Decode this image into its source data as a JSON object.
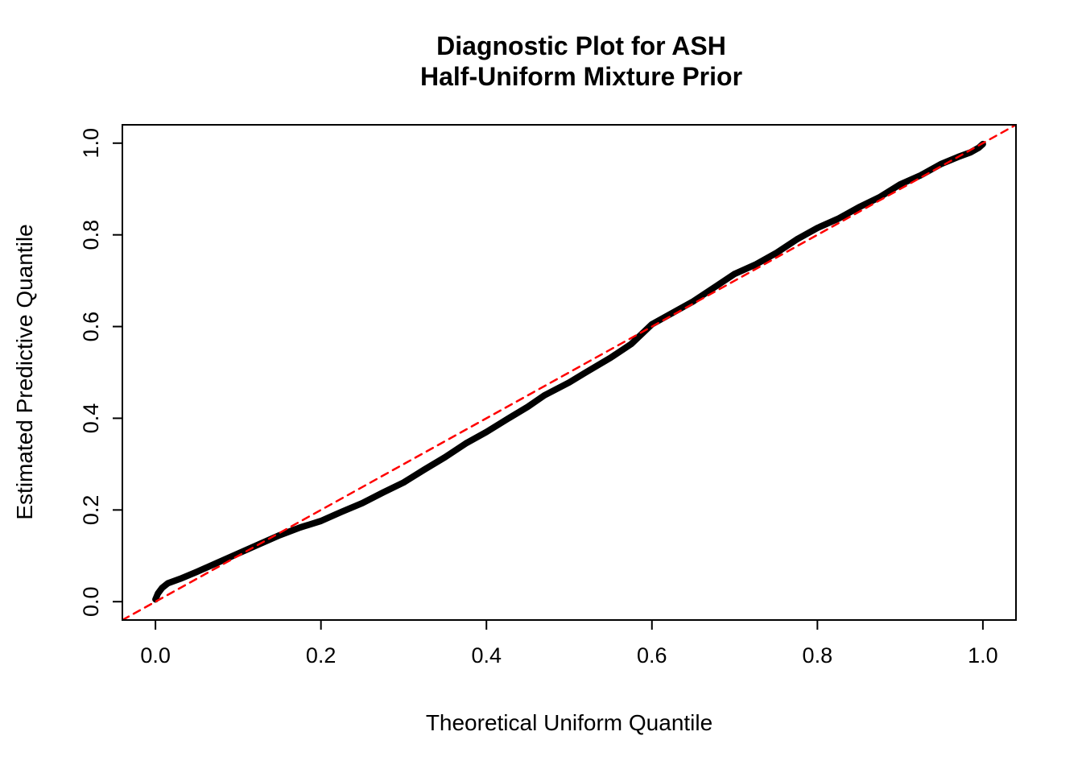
{
  "title": {
    "line1": "Diagnostic Plot for ASH",
    "line2": "Half-Uniform Mixture Prior"
  },
  "chart_data": {
    "type": "line",
    "title": "Diagnostic Plot for ASH Half-Uniform Mixture Prior",
    "xlabel": "Theoretical Uniform Quantile",
    "ylabel": "Estimated Predictive Quantile",
    "xlim": [
      -0.04,
      1.04
    ],
    "ylim": [
      -0.04,
      1.04
    ],
    "x_ticks": [
      0.0,
      0.2,
      0.4,
      0.6,
      0.8,
      1.0
    ],
    "x_tick_labels": [
      "0.0",
      "0.2",
      "0.4",
      "0.6",
      "0.8",
      "1.0"
    ],
    "y_ticks": [
      0.0,
      0.2,
      0.4,
      0.6,
      0.8,
      1.0
    ],
    "y_tick_labels": [
      "0.0",
      "0.2",
      "0.4",
      "0.6",
      "0.8",
      "1.0"
    ],
    "grid": false,
    "legend": false,
    "series": [
      {
        "name": "estimated-predictive-quantile-curve",
        "style": "solid",
        "color": "#000000",
        "width": 8,
        "points": [
          [
            0.0,
            0.005
          ],
          [
            0.003,
            0.018
          ],
          [
            0.008,
            0.03
          ],
          [
            0.015,
            0.04
          ],
          [
            0.03,
            0.05
          ],
          [
            0.05,
            0.065
          ],
          [
            0.075,
            0.085
          ],
          [
            0.1,
            0.105
          ],
          [
            0.125,
            0.125
          ],
          [
            0.15,
            0.145
          ],
          [
            0.175,
            0.162
          ],
          [
            0.2,
            0.176
          ],
          [
            0.225,
            0.196
          ],
          [
            0.25,
            0.215
          ],
          [
            0.275,
            0.238
          ],
          [
            0.3,
            0.26
          ],
          [
            0.325,
            0.288
          ],
          [
            0.35,
            0.315
          ],
          [
            0.375,
            0.345
          ],
          [
            0.4,
            0.37
          ],
          [
            0.425,
            0.398
          ],
          [
            0.45,
            0.425
          ],
          [
            0.47,
            0.45
          ],
          [
            0.5,
            0.478
          ],
          [
            0.52,
            0.5
          ],
          [
            0.55,
            0.532
          ],
          [
            0.575,
            0.562
          ],
          [
            0.6,
            0.605
          ],
          [
            0.625,
            0.63
          ],
          [
            0.65,
            0.655
          ],
          [
            0.675,
            0.685
          ],
          [
            0.7,
            0.715
          ],
          [
            0.725,
            0.735
          ],
          [
            0.75,
            0.76
          ],
          [
            0.775,
            0.79
          ],
          [
            0.8,
            0.815
          ],
          [
            0.825,
            0.835
          ],
          [
            0.85,
            0.86
          ],
          [
            0.875,
            0.882
          ],
          [
            0.9,
            0.91
          ],
          [
            0.925,
            0.93
          ],
          [
            0.95,
            0.955
          ],
          [
            0.97,
            0.97
          ],
          [
            0.985,
            0.98
          ],
          [
            0.995,
            0.99
          ],
          [
            1.0,
            0.998
          ]
        ]
      },
      {
        "name": "identity-reference-line",
        "style": "dashed",
        "color": "#FF0000",
        "width": 2.5,
        "points": [
          [
            -0.04,
            -0.04
          ],
          [
            1.04,
            1.04
          ]
        ]
      }
    ]
  },
  "colors": {
    "curve": "#000000",
    "reference": "#FF0000",
    "axis": "#000000",
    "background": "#FFFFFF"
  }
}
